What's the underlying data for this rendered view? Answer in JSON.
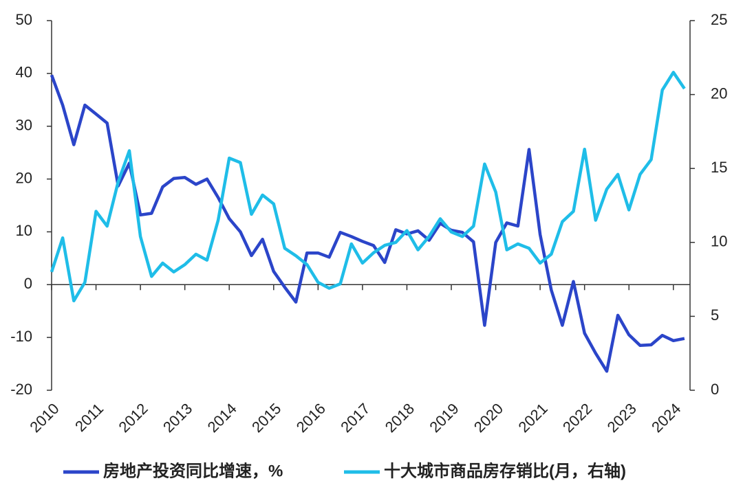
{
  "chart_data": {
    "type": "line",
    "categories": [
      "2010",
      null,
      null,
      null,
      "2011",
      null,
      null,
      null,
      "2012",
      null,
      null,
      null,
      "2013",
      null,
      null,
      null,
      "2014",
      null,
      null,
      null,
      "2015",
      null,
      null,
      null,
      "2016",
      null,
      null,
      null,
      "2017",
      null,
      null,
      null,
      "2018",
      null,
      null,
      null,
      "2019",
      null,
      null,
      null,
      "2020",
      null,
      null,
      null,
      "2021",
      null,
      null,
      null,
      "2022",
      null,
      null,
      null,
      "2023",
      null,
      null,
      null,
      "2024",
      null
    ],
    "series": [
      {
        "name": "房地产投资同比增速，%",
        "color": "#2b45c9",
        "axis": "y",
        "values": [
          39.7,
          34,
          26.5,
          34,
          32.3,
          30.6,
          18.7,
          23,
          13.2,
          13.5,
          18.5,
          20.1,
          20.3,
          19,
          20,
          16.5,
          12.5,
          10,
          5.5,
          8.6,
          2.5,
          -0.5,
          -3.3,
          6,
          6,
          5.2,
          9.9,
          9.1,
          8.2,
          7.4,
          4.2,
          10.4,
          9.6,
          10.2,
          8.4,
          11.6,
          10.3,
          9.9,
          8.1,
          -7.7,
          8,
          11.7,
          11.1,
          25.6,
          9.5,
          -1,
          -7.7,
          0.6,
          -9.2,
          -13,
          -16.4,
          -5.8,
          -9.5,
          -11.5,
          -11.4,
          -9.6,
          -10.6,
          -10.2
        ]
      },
      {
        "name": "十大城市商品房存销比(月，右轴)",
        "color": "#1fbde8",
        "axis": "y2",
        "values": [
          8,
          10.3,
          6.05,
          7.3,
          12.1,
          11.1,
          14.1,
          16.2,
          10.4,
          7.7,
          8.6,
          8,
          8.5,
          9.2,
          8.8,
          11.5,
          15.7,
          15.4,
          11.9,
          13.2,
          12.6,
          9.6,
          9.1,
          8.5,
          7.3,
          6.9,
          7.2,
          9.9,
          8.6,
          9.3,
          9.8,
          10,
          10.8,
          9.5,
          10.4,
          11.6,
          10.7,
          10.4,
          11.1,
          15.3,
          13.4,
          9.5,
          9.9,
          9.6,
          8.6,
          9.2,
          11.4,
          12.1,
          16.3,
          11.5,
          13.6,
          14.6,
          12.2,
          14.6,
          15.6,
          20.3,
          21.5,
          20.4
        ]
      }
    ],
    "ylim": [
      -20,
      50
    ],
    "yticks": [
      -20,
      -10,
      0,
      10,
      20,
      30,
      40,
      50
    ],
    "y2lim": [
      0,
      25
    ],
    "y2ticks": [
      0,
      5,
      10,
      15,
      20,
      25
    ],
    "legend": "bottom"
  }
}
